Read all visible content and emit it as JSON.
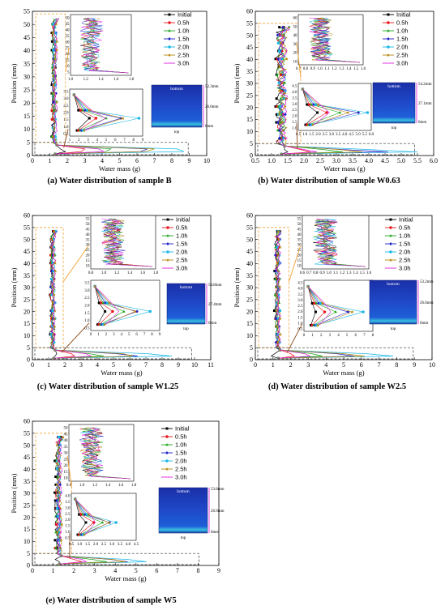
{
  "figure": {
    "legend_labels": [
      "Initial",
      "0.5h",
      "1.0h",
      "1.5h",
      "2.0h",
      "2.5h",
      "3.0h"
    ],
    "series_colors": [
      "#000000",
      "#e8141b",
      "#1aa51a",
      "#1c1cc8",
      "#16b6e6",
      "#b8860b",
      "#e01ae0"
    ],
    "markers": [
      "square",
      "circle",
      "triangle",
      "diamond",
      "circle",
      "star",
      "none"
    ],
    "image_labels": {
      "bottom": "bottom",
      "top": "top"
    }
  },
  "chart_data": [
    {
      "id": "B",
      "type": "line",
      "caption": "(a) Water distribution of sample B",
      "xlabel": "Water mass (g)",
      "ylabel": "Position (mm)",
      "xlim": [
        0,
        10
      ],
      "ylim": [
        0,
        55
      ],
      "xticks": [
        "0",
        "1",
        "2",
        "3",
        "4",
        "5",
        "6",
        "7",
        "8",
        "9",
        "10"
      ],
      "yticks": [
        "0",
        "5",
        "10",
        "15",
        "20",
        "25",
        "30",
        "35",
        "40",
        "45",
        "50",
        "55"
      ],
      "bottom_points": [
        [
          1.9,
          2.8,
          4.2,
          6.2,
          8.7,
          6.5,
          4.1
        ],
        [
          1.6,
          3.0,
          4.5,
          6.6,
          8.3,
          7.0,
          3.8
        ],
        [
          1.7,
          2.6,
          4.0,
          6.0,
          8.0,
          7.2,
          4.4
        ]
      ],
      "inset_top": {
        "xlim": [
          1.0,
          1.8
        ],
        "xticks": [
          "1.0",
          "1.2",
          "1.4",
          "1.6",
          "1.8"
        ],
        "yticks": [
          "5",
          "10",
          "15",
          "20",
          "25",
          "30",
          "35",
          "40",
          "45",
          "50"
        ]
      },
      "inset_bottom": {
        "xticks": [
          "1",
          "2",
          "3",
          "4",
          "5",
          "6",
          "7",
          "8",
          "9"
        ],
        "yticks": [
          "0.5",
          "1.0",
          "1.5",
          "2.0",
          "2.5",
          "3.0",
          "3.5"
        ]
      },
      "image": {
        "top_dim": "52.3mm",
        "mid_dim": "26.0mm",
        "bot_dim": "0mm"
      }
    },
    {
      "id": "W0.63",
      "type": "line",
      "caption": "(b) Water distribution of sample W0.63",
      "xlabel": "Water mass (g)",
      "ylabel": "Position (mm)",
      "xlim": [
        0.5,
        6.0
      ],
      "ylim": [
        0,
        60
      ],
      "xticks": [
        "0.5",
        "1.0",
        "1.5",
        "2.0",
        "2.5",
        "3.0",
        "3.5",
        "4.0",
        "4.5",
        "5.0",
        "5.5",
        "6.0"
      ],
      "yticks": [
        "0",
        "5",
        "10",
        "15",
        "20",
        "25",
        "30",
        "35",
        "40",
        "45",
        "50",
        "55",
        "60"
      ],
      "bottom_points": [
        [
          1.5,
          2.2,
          3.2,
          4.6,
          5.5,
          3.8,
          2.4
        ],
        [
          1.4,
          1.9,
          2.6,
          3.2,
          4.0,
          3.1,
          2.0
        ]
      ],
      "inset_top": {
        "xlim": [
          0.7,
          1.6
        ],
        "xticks": [
          "0.7",
          "0.8",
          "0.9",
          "1.0",
          "1.1",
          "1.2",
          "1.3",
          "1.4",
          "1.5",
          "1.6"
        ],
        "yticks": [
          "10",
          "20",
          "30",
          "40",
          "50",
          "60"
        ]
      },
      "inset_bottom": {
        "xticks": [
          "0.5",
          "1.0",
          "1.5",
          "2.0",
          "2.5",
          "3.0",
          "3.5",
          "4.0",
          "4.5",
          "5.0",
          "5.5",
          "6.0"
        ],
        "yticks": [
          "1.0",
          "1.5",
          "2.0",
          "2.5",
          "3.0",
          "3.5",
          "4.0",
          "4.5"
        ]
      },
      "image": {
        "top_dim": "54.2mm",
        "mid_dim": "27.1mm",
        "bot_dim": "0mm"
      }
    },
    {
      "id": "W1.25",
      "type": "line",
      "caption": "(c) Water distribution of sample W1.25",
      "xlabel": "Water mass (g)",
      "ylabel": "Position (mm)",
      "xlim": [
        0,
        11
      ],
      "ylim": [
        0,
        60
      ],
      "xticks": [
        "0",
        "1",
        "2",
        "3",
        "4",
        "5",
        "6",
        "7",
        "8",
        "9",
        "10",
        "11"
      ],
      "yticks": [
        "0",
        "5",
        "10",
        "15",
        "20",
        "25",
        "30",
        "35",
        "40",
        "45",
        "50",
        "55",
        "60"
      ],
      "bottom_points": [
        [
          1.4,
          2.6,
          4.4,
          6.5,
          8.6,
          6.2,
          3.6
        ],
        [
          1.5,
          2.4,
          3.5,
          5.2,
          7.1,
          5.6,
          3.3
        ]
      ],
      "inset_top": {
        "xlim": [
          0.8,
          1.8
        ],
        "xticks": [
          "0.8",
          "1.0",
          "1.2",
          "1.4",
          "1.6",
          "1.8"
        ],
        "yticks": [
          "10",
          "15",
          "20",
          "25",
          "30",
          "35",
          "40",
          "45",
          "50",
          "55"
        ]
      },
      "inset_bottom": {
        "xticks": [
          "0",
          "1",
          "2",
          "3",
          "4",
          "5",
          "6",
          "7",
          "8",
          "9"
        ],
        "yticks": [
          "0.5",
          "1.0",
          "1.5",
          "2.0",
          "2.5",
          "3.0",
          "3.5"
        ]
      },
      "image": {
        "top_dim": "54.8mm",
        "mid_dim": "27.4mm",
        "bot_dim": "0mm"
      }
    },
    {
      "id": "W2.5",
      "type": "line",
      "caption": "(d) Water distribution of sample W2.5",
      "xlabel": "Water mass (g)",
      "ylabel": "Position (mm)",
      "xlim": [
        0,
        10
      ],
      "ylim": [
        0,
        60
      ],
      "xticks": [
        "0",
        "1",
        "2",
        "3",
        "4",
        "5",
        "6",
        "7",
        "8",
        "9",
        "10"
      ],
      "yticks": [
        "0",
        "5",
        "10",
        "15",
        "20",
        "25",
        "30",
        "35",
        "40",
        "45",
        "50",
        "55",
        "60"
      ],
      "bottom_points": [
        [
          0.9,
          2.2,
          3.8,
          5.6,
          7.8,
          6.2,
          3.1
        ],
        [
          1.1,
          2.0,
          3.2,
          4.6,
          6.3,
          5.0,
          2.8
        ]
      ],
      "inset_top": {
        "xlim": [
          0.6,
          1.6
        ],
        "xticks": [
          "0.6",
          "0.7",
          "0.8",
          "0.9",
          "1.0",
          "1.1",
          "1.2",
          "1.3",
          "1.4",
          "1.5",
          "1.6"
        ],
        "yticks": [
          "10",
          "15",
          "20",
          "25",
          "30",
          "35",
          "40",
          "45",
          "50",
          "55"
        ]
      },
      "inset_bottom": {
        "xticks": [
          "0",
          "1",
          "2",
          "3",
          "4",
          "5",
          "6",
          "7",
          "8"
        ],
        "yticks": [
          "0.5",
          "1.0",
          "1.5",
          "2.0",
          "2.5",
          "3.0",
          "3.5",
          "4.0",
          "4.5"
        ]
      },
      "image": {
        "top_dim": "53.2mm",
        "mid_dim": "26.6mm",
        "bot_dim": "0mm"
      }
    },
    {
      "id": "W5",
      "type": "line",
      "caption": "(e) Water distribution of sample W5",
      "xlabel": "Water mass (g)",
      "ylabel": "Position (mm)",
      "xlim": [
        0,
        9
      ],
      "ylim": [
        0,
        60
      ],
      "xticks": [
        "0",
        "1",
        "2",
        "3",
        "4",
        "5",
        "6",
        "7",
        "8",
        "9"
      ],
      "yticks": [
        "0",
        "5",
        "10",
        "15",
        "20",
        "25",
        "30",
        "35",
        "40",
        "45",
        "50",
        "55",
        "60"
      ],
      "bottom_points": [
        [
          1.3,
          2.4,
          3.6,
          4.6,
          5.5,
          4.5,
          2.6
        ],
        [
          1.1,
          2.0,
          2.9,
          3.8,
          4.6,
          3.9,
          2.4
        ]
      ],
      "inset_top": {
        "xlim": [
          0.8,
          1.8
        ],
        "xticks": [
          "0.8",
          "1.0",
          "1.2",
          "1.4",
          "1.6",
          "1.8"
        ],
        "yticks": [
          "10",
          "15",
          "20",
          "25",
          "30",
          "35",
          "40",
          "45",
          "50"
        ]
      },
      "inset_bottom": {
        "xticks": [
          "0.5",
          "1.0",
          "1.5",
          "2.0",
          "2.5",
          "3.0",
          "3.5",
          "4.0",
          "4.5"
        ],
        "yticks": [
          "0.5",
          "1.0",
          "1.5",
          "2.0",
          "2.5",
          "3.0",
          "3.5",
          "4.0"
        ]
      },
      "image": {
        "top_dim": "53.8mm",
        "mid_dim": "26.9mm",
        "bot_dim": "0mm"
      }
    }
  ]
}
